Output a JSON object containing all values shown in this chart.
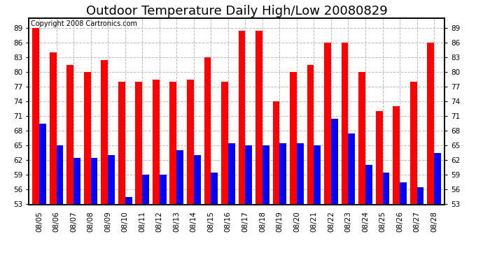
{
  "title": "Outdoor Temperature Daily High/Low 20080829",
  "copyright": "Copyright 2008 Cartronics.com",
  "dates": [
    "08/05",
    "08/06",
    "08/07",
    "08/08",
    "08/09",
    "08/10",
    "08/11",
    "08/12",
    "08/13",
    "08/14",
    "08/15",
    "08/16",
    "08/17",
    "08/18",
    "08/19",
    "08/20",
    "08/21",
    "08/22",
    "08/23",
    "08/24",
    "08/25",
    "08/26",
    "08/27",
    "08/28"
  ],
  "highs": [
    89.0,
    84.0,
    81.5,
    80.0,
    82.5,
    78.0,
    78.0,
    78.5,
    78.0,
    78.5,
    83.0,
    78.0,
    88.5,
    88.5,
    74.0,
    80.0,
    81.5,
    86.0,
    86.0,
    80.0,
    72.0,
    73.0,
    78.0,
    86.0
  ],
  "lows": [
    69.5,
    65.0,
    62.5,
    62.5,
    63.0,
    54.5,
    59.0,
    59.0,
    64.0,
    63.0,
    59.5,
    65.5,
    65.0,
    65.0,
    65.5,
    65.5,
    65.0,
    70.5,
    67.5,
    61.0,
    59.5,
    57.5,
    56.5,
    63.5
  ],
  "high_color": "#ff0000",
  "low_color": "#0000ff",
  "bg_color": "#ffffff",
  "grid_color": "#bbbbbb",
  "title_fontsize": 13,
  "copyright_fontsize": 7,
  "tick_fontsize": 7.5,
  "ylim_min": 53.0,
  "ylim_max": 91.0,
  "yticks": [
    53.0,
    56.0,
    59.0,
    62.0,
    65.0,
    68.0,
    71.0,
    74.0,
    77.0,
    80.0,
    83.0,
    86.0,
    89.0
  ],
  "bar_width": 0.4
}
